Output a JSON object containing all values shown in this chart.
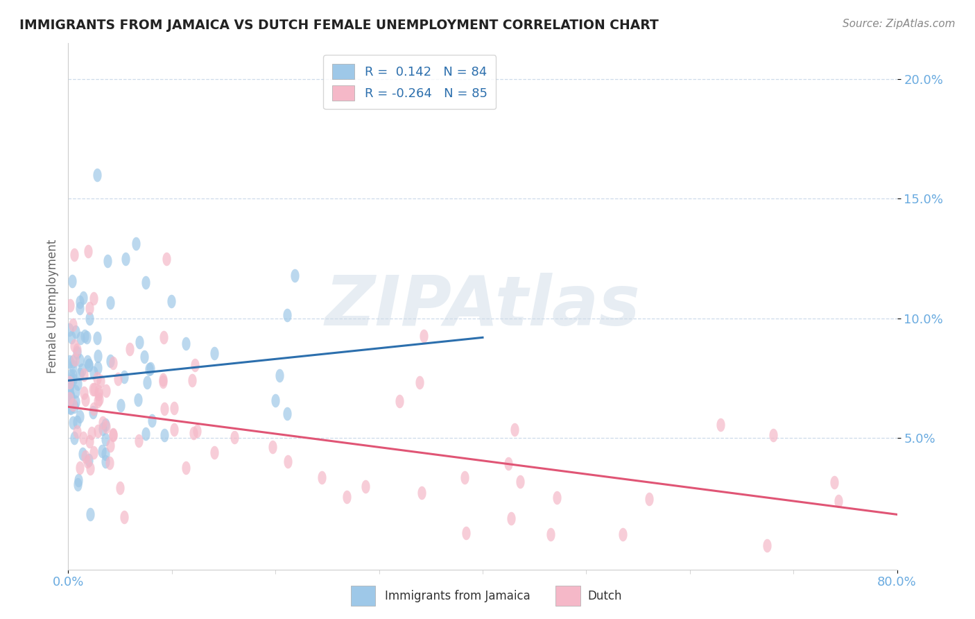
{
  "title": "IMMIGRANTS FROM JAMAICA VS DUTCH FEMALE UNEMPLOYMENT CORRELATION CHART",
  "source_text": "Source: ZipAtlas.com",
  "ylabel": "Female Unemployment",
  "xlim": [
    0.0,
    0.8
  ],
  "ylim": [
    -0.005,
    0.215
  ],
  "yticks": [
    0.05,
    0.1,
    0.15,
    0.2
  ],
  "ytick_labels": [
    "5.0%",
    "10.0%",
    "15.0%",
    "20.0%"
  ],
  "xtick_labels": [
    "0.0%",
    "80.0%"
  ],
  "xticks": [
    0.0,
    0.8
  ],
  "legend_r1": "R =  0.142",
  "legend_n1": "N = 84",
  "legend_r2": "R = -0.264",
  "legend_n2": "N = 85",
  "color_blue": "#9ec8e8",
  "color_pink": "#f5b8c8",
  "color_blue_line": "#2c6fad",
  "color_pink_line": "#e05575",
  "color_grid": "#c8d8e8",
  "color_axis_labels": "#6aabe0",
  "watermark_color": "#d0dce8",
  "background_color": "#ffffff",
  "trend_blue_x0": 0.0,
  "trend_blue_y0": 0.074,
  "trend_blue_x1": 0.4,
  "trend_blue_y1": 0.092,
  "trend_pink_x0": 0.0,
  "trend_pink_y0": 0.063,
  "trend_pink_x1": 0.8,
  "trend_pink_y1": 0.018
}
